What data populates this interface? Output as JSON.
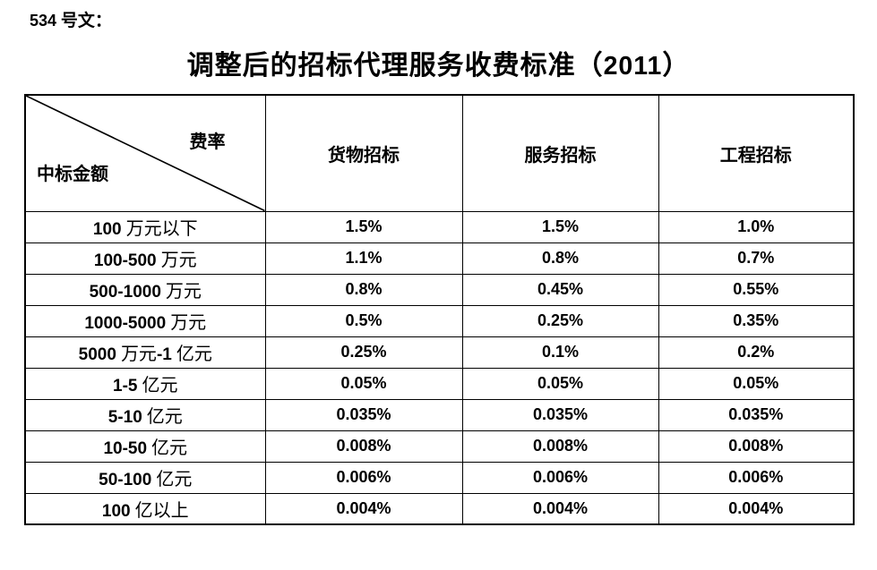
{
  "doc_label": "534 号文：",
  "title": "调整后的招标代理服务收费标准（2011）",
  "table": {
    "corner": {
      "top_right_label": "费率",
      "bottom_left_label": "中标金额"
    },
    "columns": [
      "货物招标",
      "服务招标",
      "工程招标"
    ],
    "rows": [
      {
        "label": "100 万元以下",
        "values": [
          "1.5%",
          "1.5%",
          "1.0%"
        ]
      },
      {
        "label": "100-500 万元",
        "values": [
          "1.1%",
          "0.8%",
          "0.7%"
        ]
      },
      {
        "label": "500-1000 万元",
        "values": [
          "0.8%",
          "0.45%",
          "0.55%"
        ]
      },
      {
        "label": "1000-5000 万元",
        "values": [
          "0.5%",
          "0.25%",
          "0.35%"
        ]
      },
      {
        "label": "5000 万元-1 亿元",
        "values": [
          "0.25%",
          "0.1%",
          "0.2%"
        ]
      },
      {
        "label": "1-5 亿元",
        "values": [
          "0.05%",
          "0.05%",
          "0.05%"
        ]
      },
      {
        "label": "5-10 亿元",
        "values": [
          "0.035%",
          "0.035%",
          "0.035%"
        ]
      },
      {
        "label": "10-50 亿元",
        "values": [
          "0.008%",
          "0.008%",
          "0.008%"
        ]
      },
      {
        "label": "50-100 亿元",
        "values": [
          "0.006%",
          "0.006%",
          "0.006%"
        ]
      },
      {
        "label": "100 亿以上",
        "values": [
          "0.004%",
          "0.004%",
          "0.004%"
        ]
      }
    ]
  },
  "colors": {
    "text": "#000000",
    "border": "#000000",
    "background": "#ffffff"
  }
}
